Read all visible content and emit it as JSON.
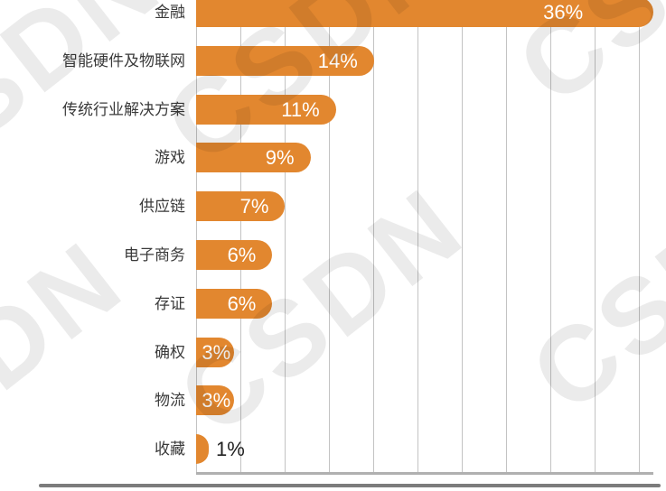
{
  "chart_data": {
    "type": "bar",
    "orientation": "horizontal",
    "title": "",
    "categories": [
      "金融",
      "智能硬件及物联网",
      "传统行业解决方案",
      "游戏",
      "供应链",
      "电子商务",
      "存证",
      "确权",
      "物流",
      "收藏"
    ],
    "values": [
      36,
      14,
      11,
      9,
      7,
      6,
      6,
      3,
      3,
      1
    ],
    "value_labels": [
      "36%",
      "14%",
      "11%",
      "9%",
      "7%",
      "6%",
      "6%",
      "3%",
      "3%",
      "1%"
    ],
    "xlim": [
      0,
      36
    ],
    "grid": true,
    "gridline_count": 11,
    "legend": "none"
  },
  "colors": {
    "bar": "#e2872f",
    "category_label": "#3a3a3a",
    "value_inside": "#ffffff",
    "value_outside": "#1f1f1f",
    "gridline": "#c3c3c3",
    "axis_line": "#b0b0b0",
    "bottom_rule": "#7c7c7c"
  },
  "watermark": {
    "text": "CSDN"
  }
}
